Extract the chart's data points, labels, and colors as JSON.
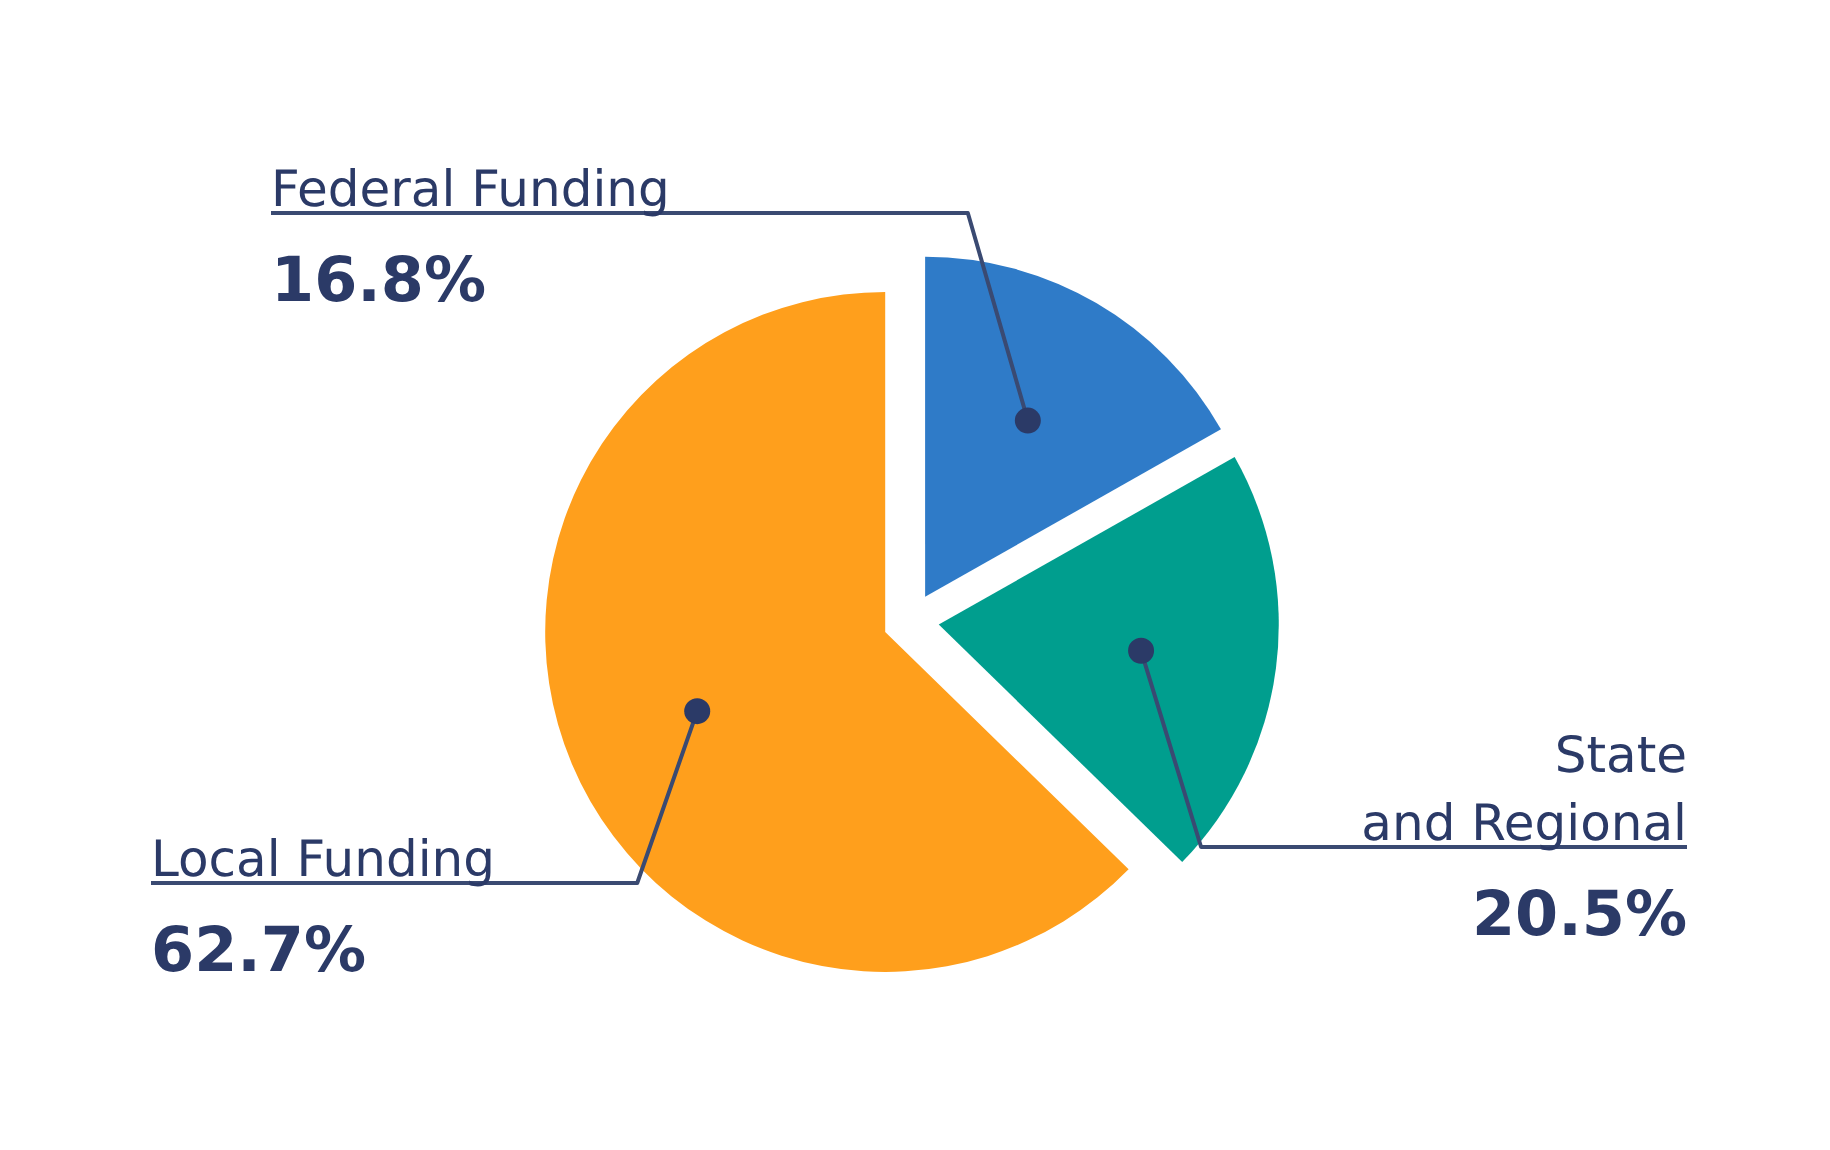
{
  "chart_data": {
    "type": "pie",
    "categories": [
      "Federal Funding",
      "State\nand Regional",
      "Local Funding"
    ],
    "values": [
      16.8,
      20.5,
      62.7
    ],
    "colors": [
      "#2f7bc8",
      "#009e8e",
      "#ff9f1c"
    ],
    "value_labels": [
      "16.8%",
      "20.5%",
      "62.7%"
    ]
  }
}
